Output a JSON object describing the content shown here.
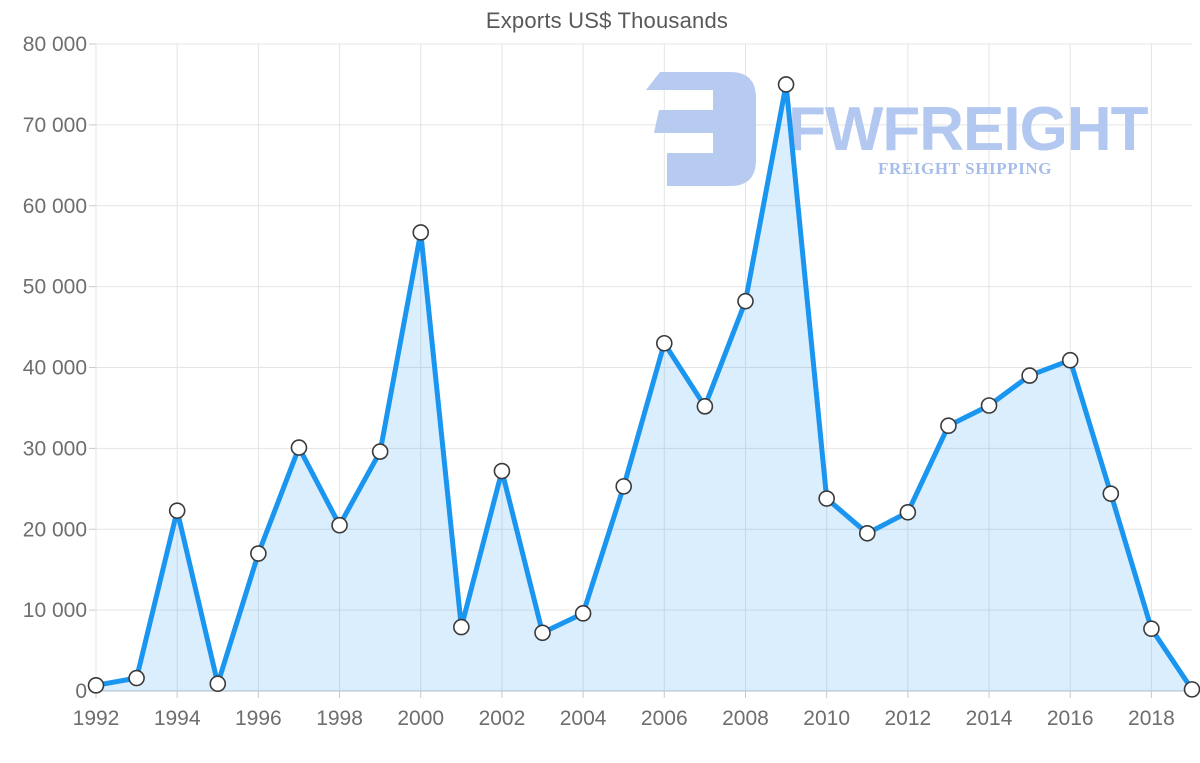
{
  "page": {
    "background": "#ffffff"
  },
  "watermark": {
    "brand": "FWFREIGHT",
    "tagline": "FREIGHT SHIPPING",
    "glyph": "fwfreight-logo",
    "brand_color": "#b3c8f0",
    "tagline_color": "#a6bde9",
    "glyph_color": "#b7cbf1"
  },
  "chart_data": {
    "type": "area",
    "title": "Exports US$ Thousands",
    "series_name": "Exports US$ Thousands",
    "x": [
      1992,
      1993,
      1994,
      1995,
      1996,
      1997,
      1998,
      1999,
      2000,
      2001,
      2002,
      2003,
      2004,
      2005,
      2006,
      2007,
      2008,
      2009,
      2010,
      2011,
      2012,
      2013,
      2014,
      2015,
      2016,
      2017,
      2018,
      2019
    ],
    "values": [
      700,
      1600,
      22300,
      900,
      17000,
      30100,
      20500,
      29600,
      56700,
      7900,
      27200,
      7200,
      9600,
      25300,
      43000,
      35200,
      48200,
      75000,
      23800,
      19500,
      22100,
      32800,
      35300,
      39000,
      40900,
      24400,
      7700,
      200
    ],
    "xlabel": "",
    "ylabel": "",
    "ylim": [
      0,
      80000
    ],
    "y_tick_labels": [
      "0",
      "10 000",
      "20 000",
      "30 000",
      "40 000",
      "50 000",
      "60 000",
      "70 000",
      "80 000"
    ],
    "x_tick_labels": [
      "1992",
      "1994",
      "1996",
      "1998",
      "2000",
      "2002",
      "2004",
      "2006",
      "2008",
      "2010",
      "2012",
      "2014",
      "2016",
      "2018"
    ],
    "grid": true,
    "legend": "none",
    "line_color": "#1b96f0",
    "fill_color": "rgba(30,150,240,0.16)",
    "marker_fill": "#ffffff",
    "marker_stroke": "#3a3a3a",
    "grid_color": "#e4e4e4",
    "axis_line_color": "#b9c0c6",
    "tick_color": "#c9c9c9",
    "label_color": "#6e6e6e",
    "title_color": "#595959"
  }
}
